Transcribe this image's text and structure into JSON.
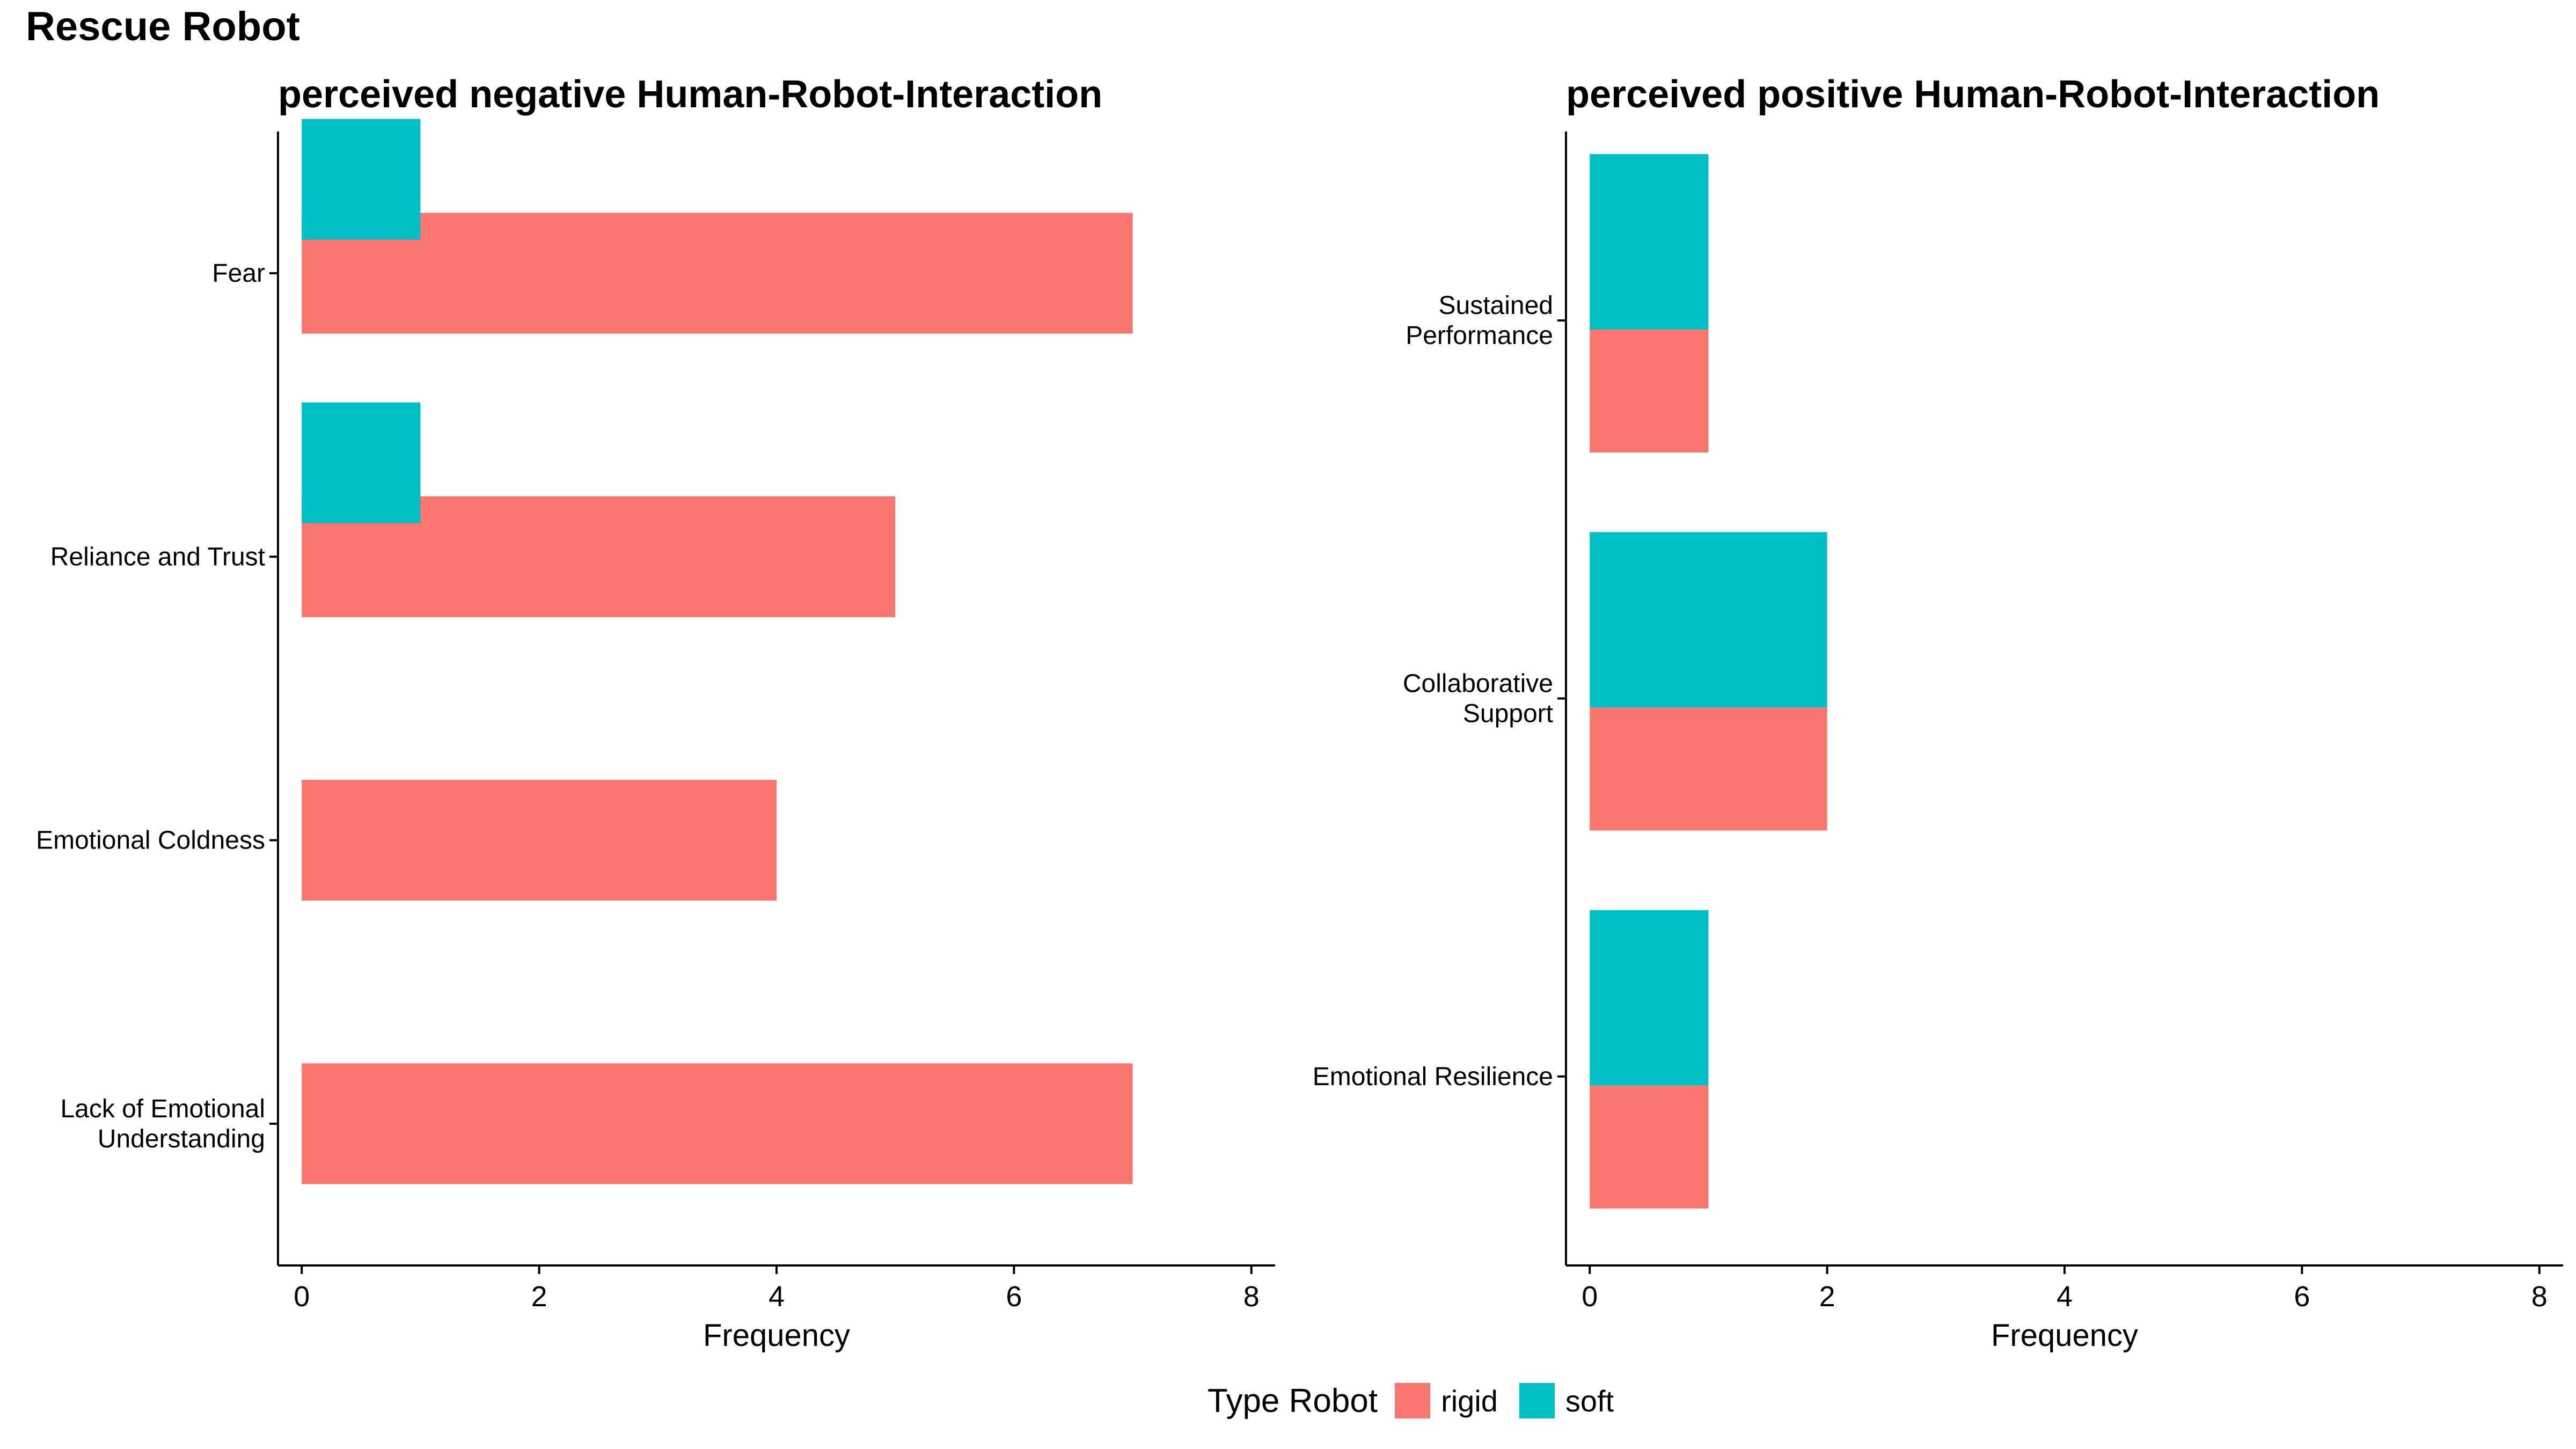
{
  "page_title": "Rescue Robot",
  "legend": {
    "title": "Type Robot",
    "items": [
      {
        "label": "rigid",
        "color": "#F8766D"
      },
      {
        "label": "soft",
        "color": "#00BFC4"
      }
    ]
  },
  "chart_data": [
    {
      "type": "bar",
      "orientation": "horizontal",
      "title": "perceived negative Human-Robot-Interaction",
      "xlabel": "Frequency",
      "ylabel": "",
      "xlim": [
        0,
        8
      ],
      "xticks": [
        0,
        2,
        4,
        6,
        8
      ],
      "categories": [
        "Fear",
        "Reliance and Trust",
        "Emotional Coldness",
        "Lack of Emotional Understanding"
      ],
      "category_lines": [
        [
          "Fear"
        ],
        [
          "Reliance and Trust"
        ],
        [
          "Emotional Coldness"
        ],
        [
          "Lack of Emotional",
          "Understanding"
        ]
      ],
      "series": [
        {
          "name": "rigid",
          "color": "#F8766D",
          "values": [
            7,
            5,
            4,
            7
          ]
        },
        {
          "name": "soft",
          "color": "#00BFC4",
          "values": [
            1,
            1,
            0,
            0
          ]
        }
      ],
      "grid": false
    },
    {
      "type": "bar",
      "orientation": "horizontal",
      "stacked": true,
      "title": "perceived positive Human-Robot-Interaction",
      "xlabel": "Frequency",
      "ylabel": "",
      "xlim": [
        0,
        8
      ],
      "xticks": [
        0,
        2,
        4,
        6,
        8
      ],
      "categories": [
        "Sustained Performance",
        "Collaborative Support",
        "Emotional Resilience"
      ],
      "category_lines": [
        [
          "Sustained",
          "Performance"
        ],
        [
          "Collaborative",
          "Support"
        ],
        [
          "Emotional Resilience"
        ]
      ],
      "series": [
        {
          "name": "rigid",
          "color": "#F8766D",
          "values": [
            1,
            2,
            1
          ]
        },
        {
          "name": "soft",
          "color": "#00BFC4",
          "values": [
            1,
            2,
            1
          ]
        }
      ],
      "grid": false
    }
  ]
}
